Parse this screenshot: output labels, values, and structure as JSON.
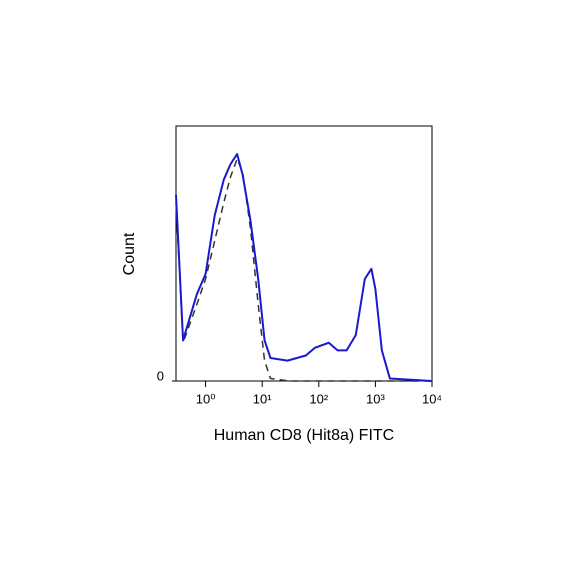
{
  "chart_data": {
    "type": "line",
    "xlabel": "Human CD8 (Hit8a) FITC",
    "ylabel": "Count",
    "xscale": "log",
    "xlim": [
      0.3,
      10000
    ],
    "ylim": [
      0,
      100
    ],
    "xticks": [
      {
        "value": 1,
        "label": "10⁰"
      },
      {
        "value": 10,
        "label": "10¹"
      },
      {
        "value": 100,
        "label": "10²"
      },
      {
        "value": 1000,
        "label": "10³"
      },
      {
        "value": 10000,
        "label": "10⁴"
      }
    ],
    "yticks": [
      0
    ],
    "series": [
      {
        "color": "#1a1acc",
        "style": "solid",
        "x": [
          0.3,
          0.4,
          0.7,
          1,
          1.45,
          2.1,
          2.75,
          3.6,
          4.5,
          6.2,
          8.5,
          11,
          14,
          28,
          59,
          85,
          150,
          215,
          310,
          450,
          650,
          850,
          1000,
          1300,
          1800,
          10000
        ],
        "values": [
          73,
          16,
          34,
          42,
          65,
          79,
          85,
          89,
          81,
          63,
          40,
          16,
          9,
          8,
          10,
          13,
          15,
          12,
          12,
          18,
          40,
          44,
          36,
          12,
          1,
          0
        ]
      },
      {
        "color": "#333333",
        "style": "dashed",
        "x": [
          0.3,
          0.4,
          0.7,
          1,
          1.45,
          2.1,
          2.75,
          3.6,
          4.5,
          6.2,
          8.5,
          11,
          14,
          30,
          10000
        ],
        "values": [
          70,
          15,
          30,
          40,
          55,
          70,
          80,
          87,
          82,
          60,
          30,
          8,
          1,
          0,
          0
        ]
      }
    ]
  }
}
